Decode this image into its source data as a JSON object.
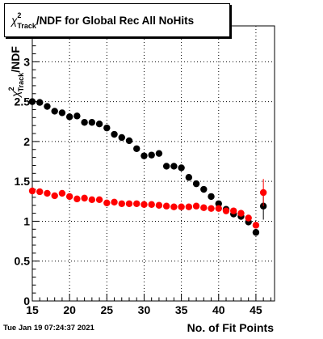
{
  "title": {
    "symbol": "χ",
    "superscript": "2",
    "subscript": "Track",
    "rest": "/NDF for Global Rec All NoHits"
  },
  "timestamp": "Tue Jan 19 07:24:37 2021",
  "chart_data": {
    "type": "scatter",
    "title": "χ²Track/NDF for Global Rec All NoHits",
    "xlabel": "No. of Fit Points",
    "ylabel": "χ²Track/NDF",
    "xlim": [
      15,
      47.5
    ],
    "ylim": [
      0,
      3.45
    ],
    "x_ticks": [
      15,
      20,
      25,
      30,
      35,
      40,
      45
    ],
    "y_ticks": [
      0,
      0.5,
      1,
      1.5,
      2,
      2.5,
      3
    ],
    "x_tick_labels": [
      "15",
      "20",
      "25",
      "30",
      "35",
      "40",
      "45"
    ],
    "y_tick_labels": [
      "0",
      "0.5",
      "1",
      "1.5",
      "2",
      "2.5",
      "3"
    ],
    "grid": true,
    "series": [
      {
        "color": "#000000",
        "x": [
          15,
          16,
          17,
          18,
          19,
          20,
          21,
          22,
          23,
          24,
          25,
          26,
          27,
          28,
          29,
          30,
          31,
          32,
          33,
          34,
          35,
          36,
          37,
          38,
          39,
          40,
          41,
          42,
          43,
          44,
          45,
          46
        ],
        "y": [
          2.5,
          2.49,
          2.44,
          2.38,
          2.36,
          2.31,
          2.32,
          2.24,
          2.24,
          2.22,
          2.17,
          2.09,
          2.05,
          2.01,
          1.91,
          1.82,
          1.83,
          1.85,
          1.69,
          1.69,
          1.67,
          1.55,
          1.47,
          1.4,
          1.31,
          1.22,
          1.15,
          1.09,
          1.06,
          0.99,
          0.86,
          1.19
        ],
        "err": [
          0.01,
          0.01,
          0.01,
          0.01,
          0.01,
          0.01,
          0.01,
          0.01,
          0.01,
          0.01,
          0.01,
          0.01,
          0.01,
          0.01,
          0.01,
          0.01,
          0.01,
          0.01,
          0.01,
          0.01,
          0.01,
          0.01,
          0.01,
          0.01,
          0.01,
          0.01,
          0.01,
          0.02,
          0.02,
          0.03,
          0.04,
          0.17
        ]
      },
      {
        "color": "#ff0000",
        "x": [
          15,
          16,
          17,
          18,
          19,
          20,
          21,
          22,
          23,
          24,
          25,
          26,
          27,
          28,
          29,
          30,
          31,
          32,
          33,
          34,
          35,
          36,
          37,
          38,
          39,
          40,
          41,
          42,
          43,
          44,
          45,
          46
        ],
        "y": [
          1.38,
          1.37,
          1.35,
          1.32,
          1.35,
          1.31,
          1.28,
          1.29,
          1.27,
          1.27,
          1.23,
          1.24,
          1.22,
          1.22,
          1.22,
          1.21,
          1.21,
          1.2,
          1.19,
          1.18,
          1.18,
          1.18,
          1.19,
          1.17,
          1.16,
          1.16,
          1.13,
          1.13,
          1.1,
          1.04,
          0.95,
          1.36
        ],
        "err": [
          0.01,
          0.01,
          0.01,
          0.01,
          0.01,
          0.01,
          0.01,
          0.01,
          0.01,
          0.01,
          0.01,
          0.01,
          0.01,
          0.01,
          0.01,
          0.01,
          0.01,
          0.01,
          0.01,
          0.01,
          0.01,
          0.01,
          0.01,
          0.01,
          0.01,
          0.01,
          0.01,
          0.02,
          0.02,
          0.03,
          0.04,
          0.17
        ]
      }
    ]
  }
}
